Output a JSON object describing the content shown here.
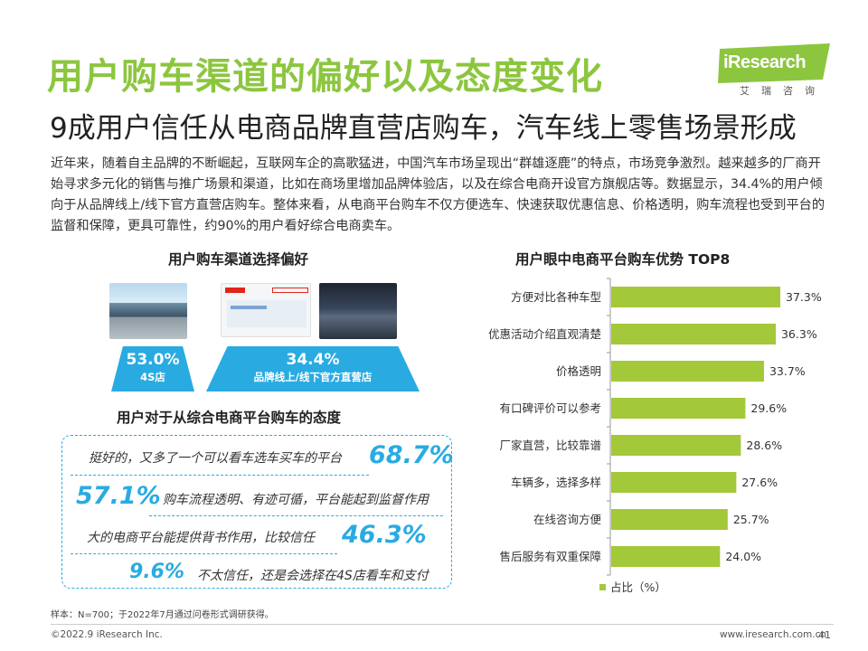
{
  "title": "用户购车渠道的偏好以及态度变化",
  "subtitle": "9成用户信任从电商品牌直营店购车，汽车线上零售场景形成",
  "brand": {
    "logo_text": "iResearch",
    "logo_cn": "艾瑞咨询",
    "color": "#8cc63f"
  },
  "intro": "近年来，随着自主品牌的不断崛起，互联网车企的高歌猛进，中国汽车市场呈现出“群雄逐鹿”的特点，市场竞争激烈。越来越多的厂商开始寻求多元化的销售与推广场景和渠道，比如在商场里增加品牌体验店，以及在综合电商开设官方旗舰店等。数据显示，34.4%的用户倾向于从品牌线上/线下官方直营店购车。整体来看，从电商平台购车不仅方便选车、快速获取优惠信息、价格透明，购车流程也受到平台的监督和保障，更具可靠性，约90%的用户看好综合电商卖车。",
  "channel": {
    "title": "用户购车渠道选择偏好",
    "items": [
      {
        "pct": "53.0%",
        "label": "4S店"
      },
      {
        "pct": "34.4%",
        "label": "品牌线上/线下官方直营店"
      }
    ]
  },
  "attitude": {
    "title": "用户对于从综合电商平台购车的态度",
    "items": [
      {
        "text": "挺好的，又多了一个可以看车选车买车的平台",
        "pct": "68.7%"
      },
      {
        "text": "购车流程透明、有迹可循，平台能起到监督作用",
        "pct": "57.1%"
      },
      {
        "text": "大的电商平台能提供背书作用，比较信任",
        "pct": "46.3%"
      },
      {
        "text": "不太信任，还是会选择在4S店看车和支付",
        "pct": "9.6%"
      }
    ],
    "accent": "#29abe2"
  },
  "chart_data": {
    "type": "bar",
    "orientation": "horizontal",
    "title": "用户眼中电商平台购车优势 TOP8",
    "categories": [
      "方便对比各种车型",
      "优惠活动介绍直观清楚",
      "价格透明",
      "有口碑评价可以参考",
      "厂家直营，比较靠谱",
      "车辆多，选择多样",
      "在线咨询方便",
      "售后服务有双重保障"
    ],
    "series": [
      {
        "name": "占比（%）",
        "values": [
          37.3,
          36.3,
          33.7,
          29.6,
          28.6,
          27.6,
          25.7,
          24.0
        ]
      }
    ],
    "value_labels": [
      "37.3%",
      "36.3%",
      "33.7%",
      "29.6%",
      "28.6%",
      "27.6%",
      "25.7%",
      "24.0%"
    ],
    "xlim": [
      0,
      40
    ],
    "legend_position": "bottom-left",
    "grid": false,
    "bar_color": "#a3c839"
  },
  "note": "样本：N=700；于2022年7月通过问卷形式调研获得。",
  "footer": {
    "copyright": "©2022.9 iResearch Inc.",
    "website": "www.iresearch.com.cn",
    "page": "41"
  }
}
